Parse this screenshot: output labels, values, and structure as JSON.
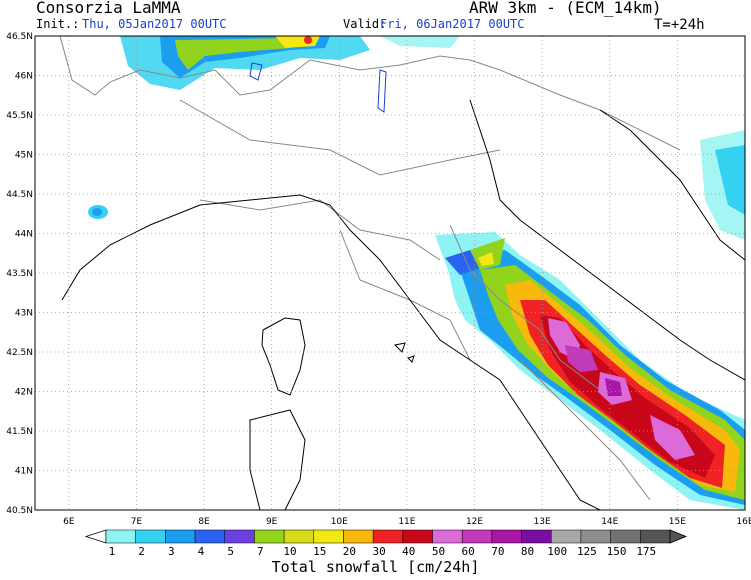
{
  "header": {
    "organization": "Consorzia LaMMA",
    "init_label": "Init.:",
    "init_value": "Thu, 05Jan2017 00UTC",
    "model": "ARW 3km - (ECM_14km)",
    "valid_label": "Valid:",
    "valid_value": "Fri, 06Jan2017 00UTC",
    "forecast_step": "T=+24h"
  },
  "map": {
    "lon_labels": [
      "6E",
      "7E",
      "8E",
      "9E",
      "10E",
      "11E",
      "12E",
      "13E",
      "14E",
      "15E",
      "16E"
    ],
    "lat_labels": [
      "46.5N",
      "46N",
      "45.5N",
      "45N",
      "44.5N",
      "44N",
      "43.5N",
      "43N",
      "42.5N",
      "42N",
      "41.5N",
      "41N",
      "40.5N"
    ],
    "lon_range": [
      5.5,
      16.0
    ],
    "lat_range": [
      40.5,
      46.5
    ],
    "land_color": "#ffffff",
    "border_color": "#888888",
    "coast_color": "#000000",
    "grid_color": "#9a9a9a"
  },
  "colorbar": {
    "title": "Total snowfall [cm/24h]",
    "levels": [
      "1",
      "2",
      "3",
      "4",
      "5",
      "7",
      "10",
      "15",
      "20",
      "30",
      "40",
      "50",
      "60",
      "70",
      "80",
      "100",
      "125",
      "150",
      "175"
    ],
    "colors": [
      "#8ef3f3",
      "#34d2f0",
      "#1b9ef0",
      "#2a63f0",
      "#6b3fe0",
      "#92d41c",
      "#d6dc1a",
      "#f3e714",
      "#f8b90c",
      "#ef2323",
      "#c8081a",
      "#dc6ad8",
      "#c03aba",
      "#a816a8",
      "#7a0ea0",
      "#a8a8a8",
      "#8e8e8e",
      "#727272",
      "#555555"
    ]
  }
}
